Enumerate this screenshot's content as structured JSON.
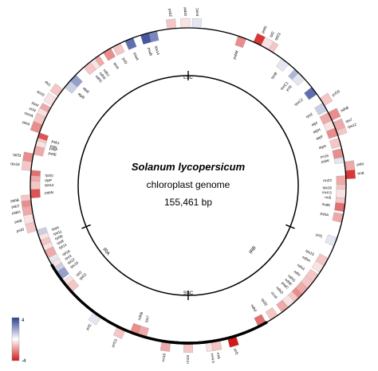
{
  "title": "Solanum lycopersicum",
  "subtitle": "chloroplast genome",
  "genome_size": "155,461 bp",
  "regions": [
    "LSC",
    "IRB",
    "SSC",
    "IRA"
  ],
  "legend": {
    "max": "4",
    "min": "-4",
    "colors": [
      "#2a3f94",
      "#ffffff",
      "#d21a1a"
    ]
  },
  "genes": [
    {
      "name": "psbA",
      "angle": 102,
      "value": -1.5,
      "side": "in"
    },
    {
      "name": "matK",
      "angle": 98,
      "value": -2.5,
      "side": "in"
    },
    {
      "name": "rps16",
      "angle": 91,
      "value": -1.0,
      "side": "in"
    },
    {
      "name": "trnK",
      "angle": 86,
      "value": -3.5,
      "side": "out"
    },
    {
      "name": "psbI",
      "angle": 83,
      "value": -1.5,
      "side": "out"
    },
    {
      "name": "psbK",
      "angle": 80,
      "value": 0.5,
      "side": "in"
    },
    {
      "name": "atpA",
      "angle": 74,
      "value": -1.0,
      "side": "in"
    },
    {
      "name": "atpF",
      "angle": 70,
      "value": -2.0,
      "side": "in"
    },
    {
      "name": "atpH",
      "angle": 67,
      "value": -0.5,
      "side": "in"
    },
    {
      "name": "atpI",
      "angle": 64,
      "value": -1.5,
      "side": "in"
    },
    {
      "name": "rps2",
      "angle": 60,
      "value": 1.0,
      "side": "in"
    },
    {
      "name": "rpoC2",
      "angle": 53,
      "value": 3.0,
      "side": "in"
    },
    {
      "name": "rpoC1",
      "angle": 44,
      "value": 1.5,
      "side": "in"
    },
    {
      "name": "rpoB",
      "angle": 38,
      "value": 0.5,
      "side": "in"
    },
    {
      "name": "petN",
      "angle": 26,
      "value": -3.5,
      "side": "out"
    },
    {
      "name": "psbM",
      "angle": 20,
      "value": -2.0,
      "side": "in"
    },
    {
      "name": "psbC",
      "angle": 3,
      "value": 0.5,
      "side": "out"
    },
    {
      "name": "psbD",
      "angle": -1,
      "value": -0.5,
      "side": "out"
    },
    {
      "name": "psbZ",
      "angle": -6,
      "value": -1.0,
      "side": "out"
    },
    {
      "name": "rps14",
      "angle": -13,
      "value": 2.5,
      "side": "in"
    },
    {
      "name": "psaB",
      "angle": -16,
      "value": 3.5,
      "side": "in"
    },
    {
      "name": "psaA",
      "angle": -22,
      "value": 3.0,
      "side": "in"
    },
    {
      "name": "ycf3",
      "angle": -27,
      "value": -1.0,
      "side": "in"
    },
    {
      "name": "rps4",
      "angle": -31,
      "value": -2.0,
      "side": "in"
    },
    {
      "name": "ndhJ",
      "angle": -36,
      "value": -1.5,
      "side": "in"
    },
    {
      "name": "ndhK",
      "angle": -38,
      "value": -0.5,
      "side": "in"
    },
    {
      "name": "ndhC",
      "angle": -40,
      "value": -1.0,
      "side": "in"
    },
    {
      "name": "atpE",
      "angle": -47,
      "value": 2.0,
      "side": "in"
    },
    {
      "name": "atpB",
      "angle": -50,
      "value": 1.0,
      "side": "in"
    },
    {
      "name": "rbcL",
      "angle": -54,
      "value": -1.0,
      "side": "out"
    },
    {
      "name": "accD",
      "angle": -58,
      "value": -0.5,
      "side": "out"
    },
    {
      "name": "psaI",
      "angle": -62,
      "value": -1.5,
      "side": "out"
    },
    {
      "name": "ycf4",
      "angle": -64,
      "value": -0.5,
      "side": "out"
    },
    {
      "name": "cemA",
      "angle": -66,
      "value": -1.0,
      "side": "out"
    },
    {
      "name": "petA",
      "angle": -69,
      "value": -2.0,
      "side": "out"
    },
    {
      "name": "psbJ",
      "angle": -72,
      "value": -3.0,
      "side": "in"
    },
    {
      "name": "psbL",
      "angle": -74,
      "value": -1.0,
      "side": "in"
    },
    {
      "name": "psbF",
      "angle": -75,
      "value": -0.5,
      "side": "in"
    },
    {
      "name": "psbE",
      "angle": -77,
      "value": -1.5,
      "side": "in"
    },
    {
      "name": "rpl33",
      "angle": -80,
      "value": -2.0,
      "side": "out"
    },
    {
      "name": "rps18",
      "angle": -83,
      "value": -1.0,
      "side": "out"
    },
    {
      "name": "rpl20",
      "angle": -86,
      "value": -2.5,
      "side": "in"
    },
    {
      "name": "clpP",
      "angle": -88,
      "value": -1.5,
      "side": "in"
    },
    {
      "name": "rps12",
      "angle": -90,
      "value": -1.0,
      "side": "in"
    },
    {
      "name": "psbN",
      "angle": -93,
      "value": -3.0,
      "side": "in"
    },
    {
      "name": "psbB",
      "angle": -95,
      "value": -1.0,
      "side": "out"
    },
    {
      "name": "psbT",
      "angle": -97,
      "value": -2.0,
      "side": "out"
    },
    {
      "name": "psbH",
      "angle": -99,
      "value": -1.5,
      "side": "out"
    },
    {
      "name": "petB",
      "angle": -102,
      "value": -0.5,
      "side": "out"
    },
    {
      "name": "petD",
      "angle": -105,
      "value": -1.0,
      "side": "out"
    },
    {
      "name": "rpoA",
      "angle": -108,
      "value": 1.0,
      "side": "in"
    },
    {
      "name": "rps11",
      "angle": -110,
      "value": -0.5,
      "side": "in"
    },
    {
      "name": "rpl36",
      "angle": -112,
      "value": -1.0,
      "side": "in"
    },
    {
      "name": "rps8",
      "angle": -114,
      "value": -0.5,
      "side": "in"
    },
    {
      "name": "rpl14",
      "angle": -116,
      "value": -1.5,
      "side": "in"
    },
    {
      "name": "rpl16",
      "angle": -119,
      "value": 0.5,
      "side": "in"
    },
    {
      "name": "rps3",
      "angle": -121,
      "value": -0.5,
      "side": "in"
    },
    {
      "name": "rpl22",
      "angle": -123,
      "value": 1.0,
      "side": "in"
    },
    {
      "name": "rps19",
      "angle": -125,
      "value": 2.0,
      "side": "in"
    },
    {
      "name": "rpl2",
      "angle": -129,
      "value": -0.5,
      "side": "in"
    },
    {
      "name": "rpl23",
      "angle": -131,
      "value": -1.0,
      "side": "in"
    },
    {
      "name": "ycf2",
      "angle": -145,
      "value": 0.5,
      "side": "out"
    },
    {
      "name": "ycf15",
      "angle": -155,
      "value": -1.0,
      "side": "out"
    },
    {
      "name": "ndhB",
      "angle": -160,
      "value": -2.0,
      "side": "in"
    },
    {
      "name": "rps7",
      "angle": -163,
      "value": -1.5,
      "side": "in"
    },
    {
      "name": "rrn16",
      "angle": -172,
      "value": -1.5,
      "side": "out"
    },
    {
      "name": "rrn23",
      "angle": -180,
      "value": -1.0,
      "side": "out"
    },
    {
      "name": "rrn4.5",
      "angle": -188,
      "value": -0.5,
      "side": "out"
    },
    {
      "name": "rrn5",
      "angle": -190,
      "value": -1.0,
      "side": "out"
    },
    {
      "name": "ycf1",
      "angle": -196,
      "value": -4.0,
      "side": "out"
    },
    {
      "name": "ndhF",
      "angle": -208,
      "value": -2.5,
      "side": "in"
    },
    {
      "name": "rpl32",
      "angle": -213,
      "value": -1.0,
      "side": "in"
    },
    {
      "name": "ccsA",
      "angle": -218,
      "value": -1.5,
      "side": "in"
    },
    {
      "name": "ndhD",
      "angle": -221,
      "value": -0.5,
      "side": "in"
    },
    {
      "name": "psaC",
      "angle": -224,
      "value": -1.0,
      "side": "in"
    },
    {
      "name": "ndhE",
      "angle": -226,
      "value": -2.0,
      "side": "in"
    },
    {
      "name": "ndhG",
      "angle": -228,
      "value": -1.5,
      "side": "in"
    },
    {
      "name": "ndhI",
      "angle": -231,
      "value": -1.0,
      "side": "in"
    },
    {
      "name": "ndhA",
      "angle": -234,
      "value": -1.0,
      "side": "in"
    },
    {
      "name": "ndhH",
      "angle": -238,
      "value": -0.5,
      "side": "in"
    },
    {
      "name": "rps15",
      "angle": -241,
      "value": -1.0,
      "side": "in"
    },
    {
      "name": "ycf1",
      "angle": -249,
      "value": 0.5,
      "side": "in"
    },
    {
      "name": "rrn5",
      "angle": -265,
      "value": -1.0,
      "side": "in"
    },
    {
      "name": "rrn4.5",
      "angle": -267,
      "value": -0.5,
      "side": "in"
    },
    {
      "name": "rrn23",
      "angle": -272,
      "value": -1.5,
      "side": "in"
    },
    {
      "name": "rrn16",
      "angle": -282,
      "value": -2.0,
      "side": "in"
    },
    {
      "name": "rps12",
      "angle": -290,
      "value": -1.0,
      "side": "out"
    },
    {
      "name": "rps7",
      "angle": -292,
      "value": -1.5,
      "side": "out"
    },
    {
      "name": "ndhB",
      "angle": -296,
      "value": -2.0,
      "side": "out"
    },
    {
      "name": "ycf15",
      "angle": -302,
      "value": -1.0,
      "side": "out"
    },
    {
      "name": "ycf2",
      "angle": -314,
      "value": 0.5,
      "side": "in"
    },
    {
      "name": "rpl23",
      "angle": -329,
      "value": -1.0,
      "side": "out"
    },
    {
      "name": "rpl2",
      "angle": -331,
      "value": -0.5,
      "side": "out"
    }
  ]
}
